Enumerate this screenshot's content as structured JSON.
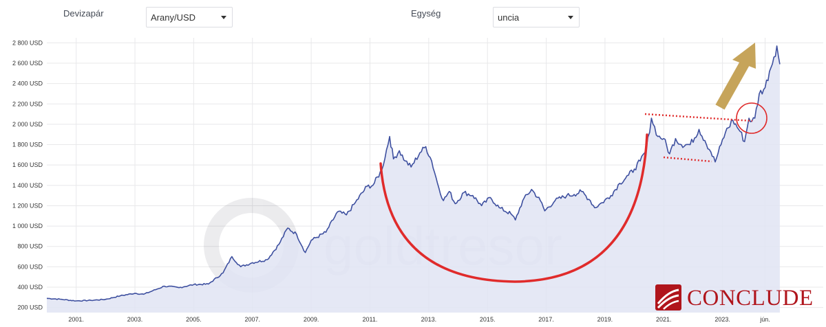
{
  "controls": {
    "pair_label": "Devizapár",
    "pair_value": "Arany/USD",
    "unit_label": "Egység",
    "unit_value": "uncia"
  },
  "watermark": "goldtresor",
  "brand": {
    "name": "CONCLUDE",
    "color": "#b0151c"
  },
  "colors": {
    "line": "#3d4f9f",
    "area": "#e1e4f3",
    "annotation_red": "#e02b2b",
    "arrow": "#c6a45a",
    "grid": "#e8e8ea"
  },
  "chart_data": {
    "type": "area",
    "currency_suffix": " USD",
    "ylim": [
      150,
      2850
    ],
    "y_ticks": [
      200,
      400,
      600,
      800,
      1000,
      1200,
      1400,
      1600,
      1800,
      2000,
      2200,
      2400,
      2600,
      2800
    ],
    "y_tick_labels": [
      "200 USD",
      "400 USD",
      "600 USD",
      "800 USD",
      "1 000 USD",
      "1 200 USD",
      "1 400 USD",
      "1 600 USD",
      "1 800 USD",
      "2 000 USD",
      "2 200 USD",
      "2 400 USD",
      "2 600 USD",
      "2 800 USD"
    ],
    "xlim": [
      2000.0,
      2025.0
    ],
    "x_ticks": [
      2001,
      2003,
      2005,
      2007,
      2009,
      2011,
      2013,
      2015,
      2017,
      2019,
      2021,
      2023,
      2024.45
    ],
    "x_tick_labels": [
      "2001.",
      "2003.",
      "2005.",
      "2007.",
      "2009.",
      "2011.",
      "2013.",
      "2015.",
      "2017.",
      "2019.",
      "2021.",
      "2023.",
      "jún."
    ],
    "grid": true,
    "series": [
      {
        "points": [
          [
            2000.0,
            290
          ],
          [
            2000.5,
            280
          ],
          [
            2001.0,
            265
          ],
          [
            2001.5,
            270
          ],
          [
            2002.0,
            280
          ],
          [
            2002.5,
            315
          ],
          [
            2003.0,
            340
          ],
          [
            2003.3,
            330
          ],
          [
            2003.7,
            375
          ],
          [
            2004.0,
            410
          ],
          [
            2004.5,
            395
          ],
          [
            2005.0,
            425
          ],
          [
            2005.5,
            430
          ],
          [
            2006.0,
            540
          ],
          [
            2006.3,
            700
          ],
          [
            2006.6,
            600
          ],
          [
            2007.0,
            640
          ],
          [
            2007.5,
            670
          ],
          [
            2007.9,
            820
          ],
          [
            2008.2,
            980
          ],
          [
            2008.5,
            920
          ],
          [
            2008.8,
            740
          ],
          [
            2009.0,
            860
          ],
          [
            2009.5,
            940
          ],
          [
            2009.9,
            1140
          ],
          [
            2010.2,
            1110
          ],
          [
            2010.5,
            1230
          ],
          [
            2010.9,
            1390
          ],
          [
            2011.1,
            1400
          ],
          [
            2011.4,
            1550
          ],
          [
            2011.67,
            1880
          ],
          [
            2011.8,
            1660
          ],
          [
            2012.0,
            1740
          ],
          [
            2012.2,
            1640
          ],
          [
            2012.4,
            1580
          ],
          [
            2012.7,
            1720
          ],
          [
            2012.9,
            1780
          ],
          [
            2013.1,
            1640
          ],
          [
            2013.3,
            1420
          ],
          [
            2013.5,
            1250
          ],
          [
            2013.7,
            1340
          ],
          [
            2013.9,
            1220
          ],
          [
            2014.2,
            1330
          ],
          [
            2014.5,
            1300
          ],
          [
            2014.8,
            1200
          ],
          [
            2015.1,
            1280
          ],
          [
            2015.4,
            1180
          ],
          [
            2015.8,
            1120
          ],
          [
            2015.95,
            1060
          ],
          [
            2016.2,
            1250
          ],
          [
            2016.5,
            1360
          ],
          [
            2016.8,
            1250
          ],
          [
            2016.95,
            1150
          ],
          [
            2017.3,
            1250
          ],
          [
            2017.7,
            1300
          ],
          [
            2017.95,
            1310
          ],
          [
            2018.2,
            1340
          ],
          [
            2018.5,
            1250
          ],
          [
            2018.65,
            1180
          ],
          [
            2018.9,
            1230
          ],
          [
            2019.2,
            1300
          ],
          [
            2019.5,
            1420
          ],
          [
            2019.8,
            1500
          ],
          [
            2020.0,
            1560
          ],
          [
            2020.2,
            1640
          ],
          [
            2020.4,
            1740
          ],
          [
            2020.58,
            2060
          ],
          [
            2020.8,
            1880
          ],
          [
            2021.0,
            1860
          ],
          [
            2021.2,
            1710
          ],
          [
            2021.4,
            1860
          ],
          [
            2021.6,
            1800
          ],
          [
            2021.9,
            1800
          ],
          [
            2022.2,
            1950
          ],
          [
            2022.4,
            1840
          ],
          [
            2022.6,
            1730
          ],
          [
            2022.75,
            1630
          ],
          [
            2022.95,
            1800
          ],
          [
            2023.1,
            1920
          ],
          [
            2023.35,
            2040
          ],
          [
            2023.6,
            1930
          ],
          [
            2023.75,
            1830
          ],
          [
            2023.9,
            2060
          ],
          [
            2024.0,
            2030
          ],
          [
            2024.1,
            2060
          ],
          [
            2024.25,
            2300
          ],
          [
            2024.45,
            2360
          ],
          [
            2024.6,
            2520
          ],
          [
            2024.75,
            2660
          ],
          [
            2024.85,
            2770
          ],
          [
            2024.95,
            2590
          ]
        ]
      }
    ]
  }
}
